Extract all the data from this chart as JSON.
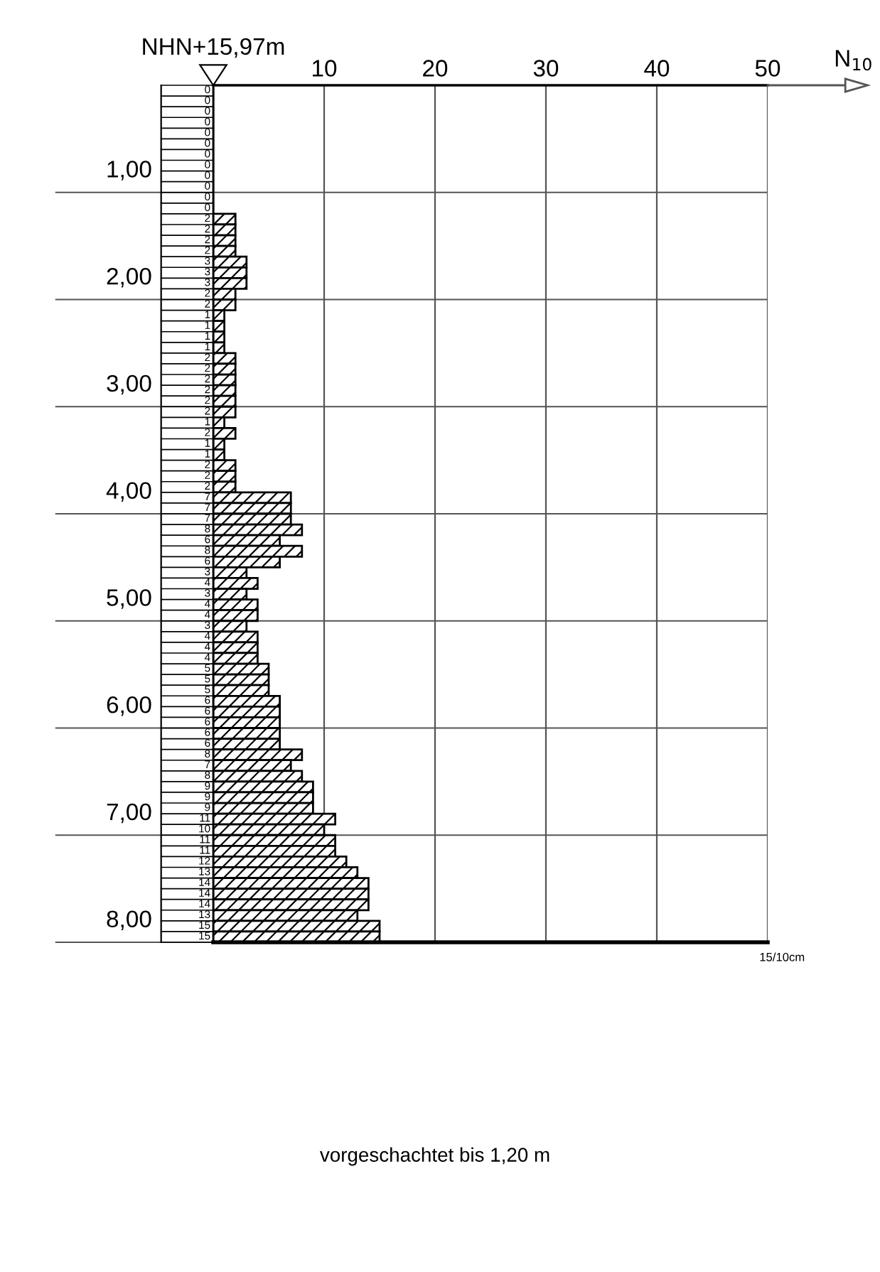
{
  "chart_data": {
    "type": "histogram",
    "orientation": "horizontal",
    "subtitle": "NHN+15,97m",
    "xlabel": "N$_{10}$",
    "bins": [
      0,
      0.1,
      0.2,
      0.3,
      0.4,
      0.5,
      0.6,
      0.7,
      0.8,
      0.9,
      1.0,
      1.1,
      1.2,
      1.3,
      1.4,
      1.5,
      1.6,
      1.7,
      1.8,
      1.9,
      2.0,
      2.1,
      2.2,
      2.3,
      2.4,
      2.5,
      2.6,
      2.7,
      2.8,
      2.9,
      3.0,
      3.1,
      3.2,
      3.3,
      3.4,
      3.5,
      3.6,
      3.7,
      3.8,
      3.9,
      4.0,
      4.1,
      4.2,
      4.3,
      4.4,
      4.5,
      4.6,
      4.7,
      4.8,
      4.9,
      5.0,
      5.1,
      5.2,
      5.3,
      5.4,
      5.5,
      5.6,
      5.7,
      5.8,
      5.9,
      6.0,
      6.1,
      6.2,
      6.3,
      6.4,
      6.5,
      6.6,
      6.7,
      6.8,
      6.9,
      7.0,
      7.1,
      7.2,
      7.3,
      7.4,
      7.5,
      7.6,
      7.7,
      7.8,
      7.9,
      8.0
    ],
    "values": [
      0,
      0,
      0,
      0,
      0,
      0,
      0,
      0,
      0,
      0,
      0,
      0,
      2,
      2,
      2,
      2,
      3,
      3,
      3,
      2,
      2,
      1,
      1,
      1,
      1,
      2,
      2,
      2,
      2,
      2,
      2,
      1,
      2,
      1,
      1,
      2,
      2,
      2,
      7,
      7,
      7,
      8,
      6,
      8,
      6,
      3,
      4,
      3,
      4,
      4,
      3,
      4,
      4,
      4,
      5,
      5,
      5,
      6,
      6,
      6,
      6,
      6,
      8,
      7,
      8,
      9,
      9,
      9,
      11,
      10,
      11,
      11,
      12,
      13,
      14,
      14,
      14,
      13,
      15,
      15
    ],
    "color": "#000000",
    "data_labels": true,
    "grid": true,
    "xlim": [
      0,
      50
    ],
    "xticks": [
      {
        "value": 0,
        "label": null
      },
      10,
      20,
      30,
      40,
      50
    ],
    "ylim": [
      8,
      0
    ],
    "yticks": [
      {
        "value": 1,
        "label": "1,00"
      },
      {
        "value": 2,
        "label": "2,00"
      },
      {
        "value": 3,
        "label": "3,00"
      },
      {
        "value": 4,
        "label": "4,00"
      },
      {
        "value": 5,
        "label": "5,00"
      },
      {
        "value": 6,
        "label": "6,00"
      },
      {
        "value": 7,
        "label": "7,00"
      },
      {
        "value": 8,
        "label": "8,00"
      }
    ],
    "annotations": [
      "15/10cm",
      "vorgeschachtet bis 1,20 m"
    ]
  }
}
